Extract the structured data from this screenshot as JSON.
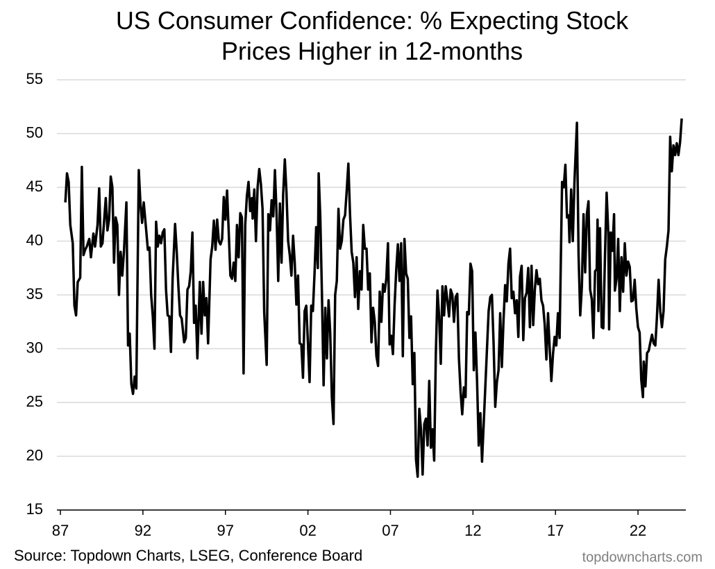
{
  "chart_data": {
    "type": "line",
    "title": "US Consumer Confidence: % Expecting Stock Prices Higher in 12-months",
    "source": "Source: Topdown Charts, LSEG, Conference Board",
    "watermark": "topdowncharts.com",
    "color": "#000000",
    "grid": true,
    "xlim": [
      1987,
      2024.9
    ],
    "xticks": [
      {
        "value": 1987,
        "label": "87"
      },
      {
        "value": 1992,
        "label": "92"
      },
      {
        "value": 1997,
        "label": "97"
      },
      {
        "value": 2002,
        "label": "02"
      },
      {
        "value": 2007,
        "label": "07"
      },
      {
        "value": 2012,
        "label": "12"
      },
      {
        "value": 2017,
        "label": "17"
      },
      {
        "value": 2022,
        "label": "22"
      }
    ],
    "ylim": [
      15,
      55
    ],
    "yticks": [
      15,
      20,
      25,
      30,
      35,
      40,
      45,
      50,
      55
    ],
    "x": [
      1987.3,
      1987.4,
      1987.5,
      1987.6,
      1987.75,
      1987.85,
      1987.95,
      1988.05,
      1988.2,
      1988.3,
      1988.4,
      1988.5,
      1988.6,
      1988.75,
      1988.85,
      1989.0,
      1989.1,
      1989.25,
      1989.35,
      1989.45,
      1989.55,
      1989.75,
      1989.85,
      1989.95,
      1990.05,
      1990.15,
      1990.25,
      1990.35,
      1990.45,
      1990.55,
      1990.65,
      1990.75,
      1990.85,
      1991.0,
      1991.1,
      1991.2,
      1991.3,
      1991.4,
      1991.5,
      1991.6,
      1991.75,
      1991.85,
      1991.95,
      1992.05,
      1992.2,
      1992.3,
      1992.4,
      1992.5,
      1992.6,
      1992.7,
      1992.8,
      1992.9,
      1993.0,
      1993.1,
      1993.2,
      1993.3,
      1993.4,
      1993.5,
      1993.6,
      1993.7,
      1993.8,
      1993.95,
      1994.05,
      1994.15,
      1994.25,
      1994.35,
      1994.5,
      1994.6,
      1994.7,
      1994.8,
      1994.9,
      1995.0,
      1995.1,
      1995.2,
      1995.3,
      1995.45,
      1995.55,
      1995.65,
      1995.75,
      1995.85,
      1995.95,
      1996.1,
      1996.2,
      1996.3,
      1996.4,
      1996.5,
      1996.6,
      1996.7,
      1996.8,
      1996.9,
      1997.0,
      1997.1,
      1997.2,
      1997.3,
      1997.4,
      1997.5,
      1997.6,
      1997.7,
      1997.8,
      1997.9,
      1998.0,
      1998.1,
      1998.2,
      1998.3,
      1998.4,
      1998.5,
      1998.6,
      1998.65,
      1998.75,
      1998.85,
      1998.95,
      1999.05,
      1999.15,
      1999.25,
      1999.35,
      1999.5,
      1999.6,
      1999.7,
      1999.8,
      1999.9,
      2000.0,
      2000.1,
      2000.2,
      2000.3,
      2000.4,
      2000.5,
      2000.6,
      2000.7,
      2000.8,
      2000.9,
      2001.0,
      2001.1,
      2001.2,
      2001.3,
      2001.4,
      2001.5,
      2001.6,
      2001.7,
      2001.8,
      2001.9,
      2002.0,
      2002.1,
      2002.2,
      2002.3,
      2002.4,
      2002.5,
      2002.6,
      2002.65,
      2002.75,
      2002.85,
      2002.95,
      2003.05,
      2003.15,
      2003.25,
      2003.35,
      2003.45,
      2003.55,
      2003.65,
      2003.75,
      2003.85,
      2003.95,
      2004.05,
      2004.15,
      2004.25,
      2004.35,
      2004.45,
      2004.55,
      2004.65,
      2004.75,
      2004.85,
      2004.95,
      2005.05,
      2005.15,
      2005.25,
      2005.35,
      2005.45,
      2005.55,
      2005.65,
      2005.75,
      2005.85,
      2005.95,
      2006.05,
      2006.15,
      2006.25,
      2006.35,
      2006.45,
      2006.55,
      2006.65,
      2006.75,
      2006.85,
      2006.95,
      2007.05,
      2007.15,
      2007.25,
      2007.35,
      2007.45,
      2007.55,
      2007.65,
      2007.75,
      2007.85,
      2007.95,
      2008.05,
      2008.15,
      2008.25,
      2008.35,
      2008.45,
      2008.55,
      2008.65,
      2008.75,
      2008.85,
      2008.95,
      2009.05,
      2009.15,
      2009.25,
      2009.35,
      2009.45,
      2009.55,
      2009.65,
      2009.75,
      2009.85,
      2009.95,
      2010.05,
      2010.15,
      2010.25,
      2010.35,
      2010.45,
      2010.55,
      2010.65,
      2010.75,
      2010.85,
      2010.95,
      2011.05,
      2011.15,
      2011.25,
      2011.35,
      2011.45,
      2011.55,
      2011.65,
      2011.75,
      2011.85,
      2011.95,
      2012.05,
      2012.15,
      2012.25,
      2012.35,
      2012.45,
      2012.55,
      2012.65,
      2012.75,
      2012.85,
      2012.95,
      2013.05,
      2013.15,
      2013.25,
      2013.35,
      2013.45,
      2013.55,
      2013.65,
      2013.75,
      2013.85,
      2013.95,
      2014.05,
      2014.15,
      2014.25,
      2014.35,
      2014.45,
      2014.55,
      2014.65,
      2014.75,
      2014.85,
      2014.95,
      2015.05,
      2015.15,
      2015.25,
      2015.35,
      2015.45,
      2015.55,
      2015.65,
      2015.75,
      2015.85,
      2015.95,
      2016.05,
      2016.15,
      2016.25,
      2016.35,
      2016.45,
      2016.55,
      2016.65,
      2016.75,
      2016.85,
      2016.95,
      2017.05,
      2017.15,
      2017.25,
      2017.4,
      2017.5,
      2017.6,
      2017.7,
      2017.8,
      2017.85,
      2017.95,
      2018.05,
      2018.15,
      2018.3,
      2018.4,
      2018.5,
      2018.6,
      2018.7,
      2018.8,
      2018.9,
      2019.0,
      2019.1,
      2019.2,
      2019.3,
      2019.4,
      2019.5,
      2019.55,
      2019.6,
      2019.7,
      2019.8,
      2019.9,
      2020.0,
      2020.1,
      2020.2,
      2020.25,
      2020.35,
      2020.45,
      2020.55,
      2020.6,
      2020.7,
      2020.8,
      2020.9,
      2021.0,
      2021.1,
      2021.2,
      2021.3,
      2021.4,
      2021.5,
      2021.6,
      2021.7,
      2021.8,
      2021.9,
      2022.0,
      2022.1,
      2022.2,
      2022.3,
      2022.35,
      2022.45,
      2022.55,
      2022.65,
      2022.75,
      2022.85,
      2022.95,
      2023.05,
      2023.15,
      2023.25,
      2023.35,
      2023.45,
      2023.55,
      2023.65,
      2023.75,
      2023.85,
      2023.95,
      2024.05,
      2024.15,
      2024.25,
      2024.35,
      2024.45,
      2024.55,
      2024.65
    ],
    "values": [
      43.6,
      46.3,
      45.5,
      41.5,
      39.8,
      34,
      33.1,
      36.2,
      36.6,
      46.9,
      38.7,
      39.2,
      39.5,
      40.2,
      38.5,
      40.7,
      39.5,
      41.5,
      44.9,
      39.5,
      39.8,
      44,
      41,
      42,
      46,
      45,
      38,
      42.2,
      41.5,
      35,
      39,
      36.8,
      39,
      43.6,
      30.3,
      31.4,
      26.7,
      25.8,
      27.4,
      26.3,
      46.6,
      43.5,
      41.7,
      43.6,
      41,
      39.2,
      39.4,
      35,
      33,
      30,
      41.8,
      39.5,
      40.5,
      39.8,
      40.8,
      41.1,
      35.5,
      33.1,
      33,
      29.7,
      36.5,
      41.6,
      39,
      35.8,
      33.1,
      32.8,
      30.6,
      31,
      35.5,
      35.8,
      37.2,
      40.8,
      32.4,
      34,
      29.1,
      36.2,
      31.4,
      36.2,
      33.1,
      34.7,
      30.5,
      38.3,
      39.5,
      41.9,
      39.2,
      42,
      40,
      39.7,
      40.2,
      44.1,
      42,
      44.7,
      40.9,
      36.8,
      36.5,
      38,
      36.3,
      41.5,
      38.5,
      42.6,
      42.2,
      27.7,
      41.5,
      44.2,
      45.5,
      42.8,
      44,
      42.1,
      44.8,
      40,
      45,
      46.7,
      45.3,
      43,
      33.4,
      28.5,
      42.5,
      41,
      43.8,
      42.3,
      46.6,
      42.5,
      36.3,
      43.5,
      38,
      44.4,
      47.6,
      44.5,
      40,
      38.7,
      36.8,
      40.5,
      38,
      34.1,
      36.8,
      30.5,
      30.4,
      27.3,
      33.5,
      34,
      30.5,
      26.9,
      34,
      33.5,
      37,
      41.3,
      37.5,
      46.3,
      42.2,
      35,
      26.6,
      33.8,
      29.1,
      34.5,
      31.5,
      25.5,
      23,
      35,
      36.3,
      43,
      39.3,
      40,
      42,
      42.4,
      44.7,
      47.2,
      42.5,
      39,
      38,
      34.8,
      38.5,
      33.7,
      37.2,
      35.5,
      41.5,
      39.3,
      39.3,
      35.5,
      37,
      30.6,
      33.8,
      32.5,
      29.3,
      28.4,
      35.3,
      32.5,
      36,
      35.3,
      36.5,
      39.8,
      30.4,
      31.2,
      29.5,
      34,
      37.3,
      39.7,
      36.3,
      39.8,
      29.3,
      40.2,
      37,
      36.5,
      31,
      33,
      26.7,
      29.6,
      19.7,
      18.1,
      24.4,
      22.5,
      18.3,
      23,
      23.5,
      21,
      27,
      20.8,
      22.5,
      19.6,
      29.5,
      35.4,
      33,
      28.6,
      35.8,
      33.1,
      35.8,
      34.5,
      33,
      35.5,
      35,
      32.5,
      34.8,
      35.1,
      29.1,
      26,
      23.9,
      26.4,
      25.5,
      33.4,
      33.2,
      37.9,
      37.2,
      28,
      31.5,
      26.9,
      21,
      24,
      19.5,
      23,
      26.5,
      30,
      33.5,
      34.8,
      35,
      30.5,
      24.6,
      26.9,
      28,
      33.3,
      28.3,
      32.6,
      35.9,
      34.4,
      37.9,
      39.3,
      34.7,
      35.3,
      33.3,
      34.5,
      31.1,
      36.7,
      37.7,
      30.8,
      34.7,
      35.2,
      37.5,
      32,
      37.7,
      32.2,
      35.5,
      37.3,
      36,
      36.5,
      34.5,
      34,
      32.2,
      29,
      33.3,
      30,
      27,
      29.5,
      31.1,
      30.3,
      33.3,
      31,
      45.5,
      45,
      47.1,
      42.2,
      42.4,
      39.9,
      44.8,
      40,
      45.5,
      51,
      38.7,
      33.1,
      35.8,
      42.5,
      37.1,
      42.5,
      43.7,
      35.5,
      34.6,
      31,
      37.2,
      37.4,
      42,
      33.5,
      41.2,
      32,
      31.9,
      38.6,
      44.5,
      40.8,
      31.8,
      40.8,
      39.1,
      42.5,
      35.4,
      36.5,
      40.2,
      33.5,
      38.5,
      35.3,
      39.8,
      36.8,
      38.1,
      37.6,
      34.4,
      34.5,
      36.4,
      33.7,
      32,
      31.5,
      27.1,
      25.5,
      28.8,
      26.5,
      29.6,
      29.8,
      30.6,
      31.3,
      30.5,
      30.3,
      33,
      36.4,
      33.5,
      32,
      33.5,
      38.3,
      39.5,
      41,
      49.7,
      46.5,
      48.9,
      48,
      49.1,
      48,
      49.2,
      51.4
    ]
  }
}
